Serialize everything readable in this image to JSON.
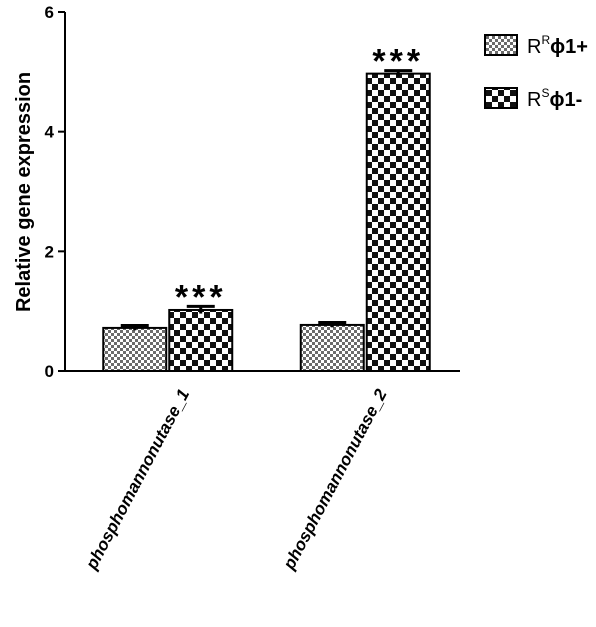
{
  "chart_data": {
    "type": "bar",
    "y_label": "Relative gene expression",
    "categories": [
      "phosphomannonutase_1",
      "phosphomannonutase_2"
    ],
    "series": [
      {
        "name": "RRϕ1+",
        "color": "#6b6b6b",
        "values": [
          0.72,
          0.77
        ],
        "errors": [
          0.04,
          0.04
        ]
      },
      {
        "name": "RSϕ1-",
        "color": "#111111",
        "values": [
          1.02,
          4.97
        ],
        "errors": [
          0.06,
          0.05
        ],
        "significance": [
          "***",
          "***"
        ]
      }
    ],
    "ylim": [
      0,
      6
    ],
    "yticks": [
      0,
      2,
      4,
      6
    ]
  }
}
